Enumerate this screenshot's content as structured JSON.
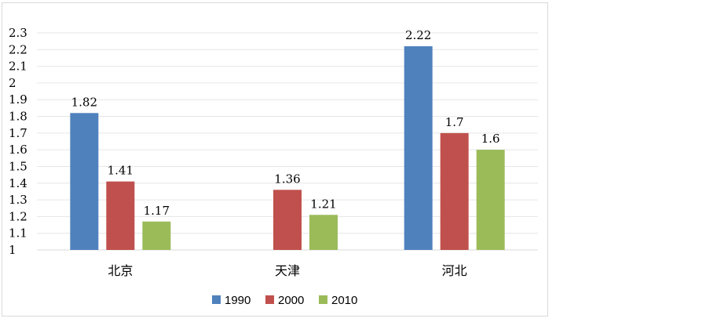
{
  "chart_data": {
    "type": "bar",
    "categories": [
      "北京",
      "天津",
      "河北"
    ],
    "series": [
      {
        "name": "1990",
        "color": "#4f81bd",
        "values": [
          1.82,
          null,
          2.22
        ]
      },
      {
        "name": "2000",
        "color": "#c0504d",
        "values": [
          1.41,
          1.36,
          1.7
        ]
      },
      {
        "name": "2010",
        "color": "#9bbb59",
        "values": [
          1.17,
          1.21,
          1.6
        ]
      }
    ],
    "title": "",
    "xlabel": "",
    "ylabel": "",
    "ylim": [
      1,
      2.3
    ],
    "yticks": [
      "1",
      "1.1",
      "1.2",
      "1.3",
      "1.4",
      "1.5",
      "1.6",
      "1.7",
      "1.8",
      "1.9",
      "2",
      "2.1",
      "2.2",
      "2.3"
    ],
    "data_labels": [
      [
        "1.82",
        "",
        "2.22"
      ],
      [
        "1.41",
        "1.36",
        "1.7"
      ],
      [
        "1.17",
        "1.21",
        "1.6"
      ]
    ],
    "grid": true,
    "legend_position": "bottom-center"
  }
}
